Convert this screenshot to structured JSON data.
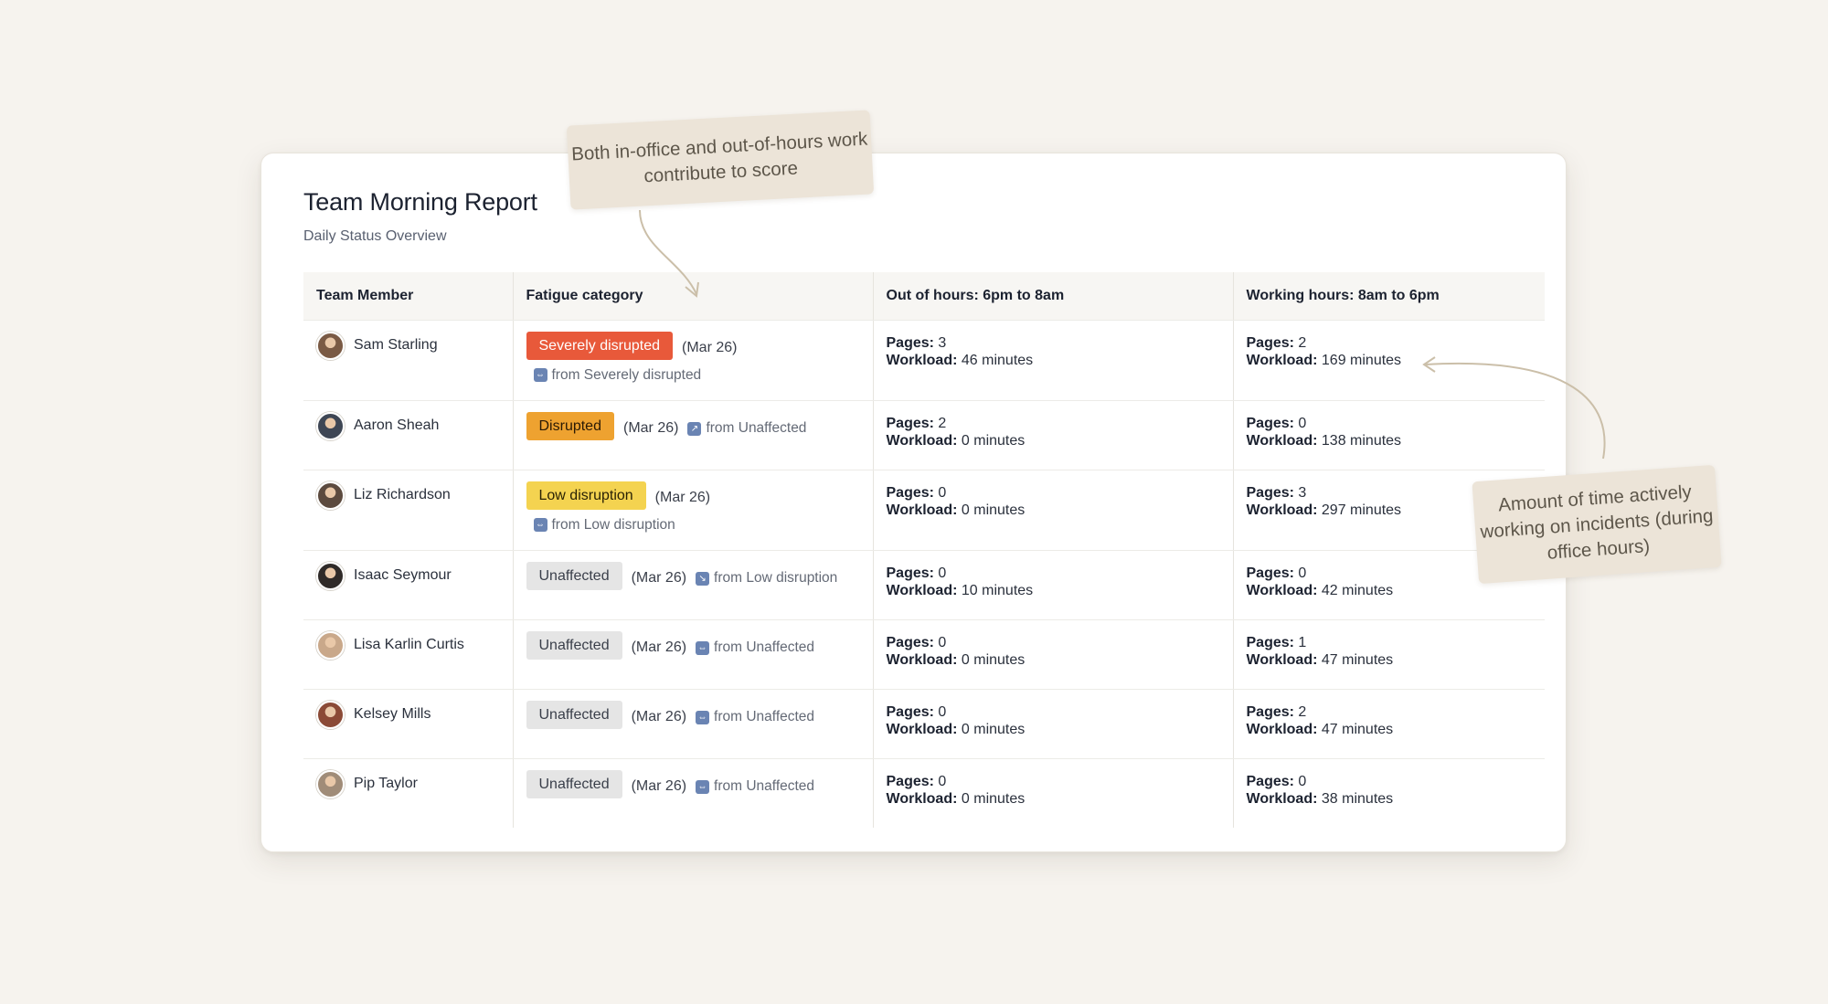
{
  "report": {
    "title": "Team Morning Report",
    "subtitle": "Daily Status Overview"
  },
  "table": {
    "headers": {
      "member": "Team Member",
      "fatigue": "Fatigue category",
      "out_of_hours": "Out of hours: 6pm to 8am",
      "working_hours": "Working hours: 8am to 6pm"
    },
    "labels": {
      "pages": "Pages:",
      "workload": "Workload:"
    },
    "rows": [
      {
        "name": "Sam Starling",
        "category": "Severely disrupted",
        "date": "(Mar 26)",
        "from": "from Severely disrupted",
        "trend": "⇔",
        "ooh_pages": "3",
        "ooh_workload": "46 minutes",
        "wh_pages": "2",
        "wh_workload": "169 minutes"
      },
      {
        "name": "Aaron Sheah",
        "category": "Disrupted",
        "date": "(Mar 26)",
        "from": "from Unaffected",
        "trend": "↗",
        "ooh_pages": "2",
        "ooh_workload": "0 minutes",
        "wh_pages": "0",
        "wh_workload": "138 minutes"
      },
      {
        "name": "Liz Richardson",
        "category": "Low disruption",
        "date": "(Mar 26)",
        "from": "from Low disruption",
        "trend": "⇔",
        "ooh_pages": "0",
        "ooh_workload": "0 minutes",
        "wh_pages": "3",
        "wh_workload": "297 minutes"
      },
      {
        "name": "Isaac Seymour",
        "category": "Unaffected",
        "date": "(Mar 26)",
        "from": "from Low disruption",
        "trend": "↘",
        "ooh_pages": "0",
        "ooh_workload": "10 minutes",
        "wh_pages": "0",
        "wh_workload": "42 minutes"
      },
      {
        "name": "Lisa Karlin Curtis",
        "category": "Unaffected",
        "date": "(Mar 26)",
        "from": "from Unaffected",
        "trend": "⇔",
        "ooh_pages": "0",
        "ooh_workload": "0 minutes",
        "wh_pages": "1",
        "wh_workload": "47 minutes"
      },
      {
        "name": "Kelsey Mills",
        "category": "Unaffected",
        "date": "(Mar 26)",
        "from": "from Unaffected",
        "trend": "⇔",
        "ooh_pages": "0",
        "ooh_workload": "0 minutes",
        "wh_pages": "2",
        "wh_workload": "47 minutes"
      },
      {
        "name": "Pip Taylor",
        "category": "Unaffected",
        "date": "(Mar 26)",
        "from": "from Unaffected",
        "trend": "⇔",
        "ooh_pages": "0",
        "ooh_workload": "0 minutes",
        "wh_pages": "0",
        "wh_workload": "38 minutes"
      }
    ]
  },
  "annotations": {
    "top": "Both in-office and out-of-hours work contribute to score",
    "right": "Amount of time actively working on incidents (during office hours)"
  },
  "colors": {
    "background": "#f6f3ee",
    "severely_disrupted": "#e8593a",
    "disrupted": "#eea230",
    "low_disruption": "#f4d350",
    "unaffected": "#e5e5e5",
    "note": "#ece4d8",
    "trend_icon": "#6a84b3"
  },
  "avatar_colors": [
    "#7a5a44",
    "#3e4654",
    "#5c4a3e",
    "#2f2a28",
    "#c9a88a",
    "#8b4a36",
    "#a08c78"
  ]
}
